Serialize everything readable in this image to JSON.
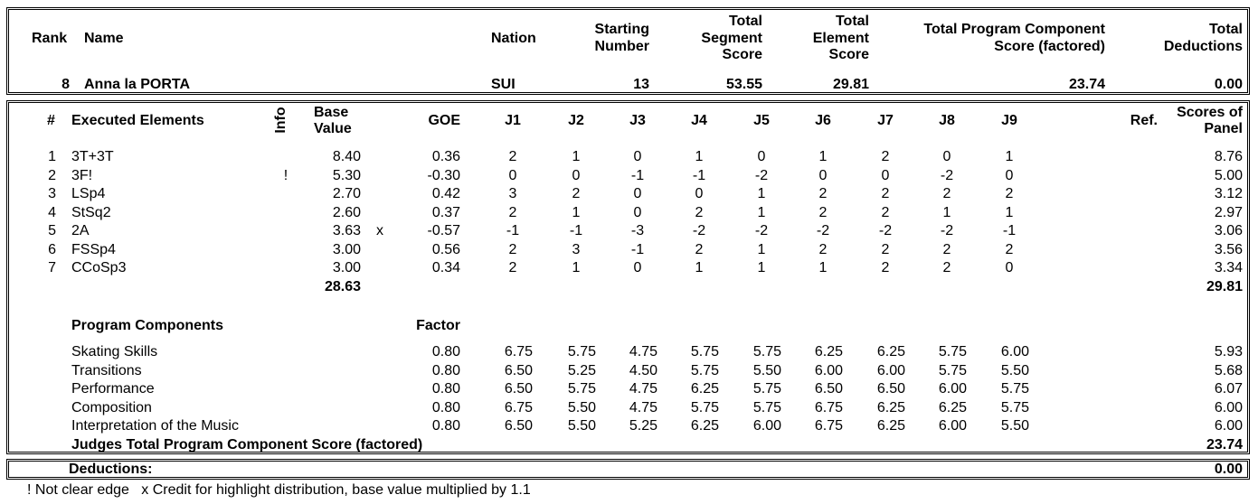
{
  "header": {
    "rank_label": "Rank",
    "name_label": "Name",
    "nation_label": "Nation",
    "starting_number_label": [
      "Starting",
      "Number"
    ],
    "total_segment_label": [
      "Total",
      "Segment",
      "Score"
    ],
    "total_element_label": [
      "Total",
      "Element",
      "Score"
    ],
    "tpcs_label": [
      "Total Program Component",
      "Score (factored)"
    ],
    "deductions_label": [
      "Total",
      "Deductions"
    ]
  },
  "skater": {
    "rank": "8",
    "name": "Anna la PORTA",
    "nation": "SUI",
    "starting_number": "13",
    "total_segment_score": "53.55",
    "total_element_score": "29.81",
    "tpcs": "23.74",
    "total_deductions": "0.00"
  },
  "elements_header": {
    "num": "#",
    "executed": "Executed Elements",
    "info": "Info",
    "base_value": [
      "Base",
      "Value"
    ],
    "goe": "GOE",
    "judges": [
      "J1",
      "J2",
      "J3",
      "J4",
      "J5",
      "J6",
      "J7",
      "J8",
      "J9"
    ],
    "ref": "Ref.",
    "scores_of_panel": [
      "Scores of",
      "Panel"
    ]
  },
  "elements": [
    {
      "num": "1",
      "name": "3T+3T",
      "info": "",
      "base": "8.40",
      "x": "",
      "goe": "0.36",
      "judges": [
        "2",
        "1",
        "0",
        "1",
        "0",
        "1",
        "2",
        "0",
        "1"
      ],
      "score": "8.76"
    },
    {
      "num": "2",
      "name": "3F!",
      "info": "!",
      "base": "5.30",
      "x": "",
      "goe": "-0.30",
      "judges": [
        "0",
        "0",
        "-1",
        "-1",
        "-2",
        "0",
        "0",
        "-2",
        "0"
      ],
      "score": "5.00"
    },
    {
      "num": "3",
      "name": "LSp4",
      "info": "",
      "base": "2.70",
      "x": "",
      "goe": "0.42",
      "judges": [
        "3",
        "2",
        "0",
        "0",
        "1",
        "2",
        "2",
        "2",
        "2"
      ],
      "score": "3.12"
    },
    {
      "num": "4",
      "name": "StSq2",
      "info": "",
      "base": "2.60",
      "x": "",
      "goe": "0.37",
      "judges": [
        "2",
        "1",
        "0",
        "2",
        "1",
        "2",
        "2",
        "1",
        "1"
      ],
      "score": "2.97"
    },
    {
      "num": "5",
      "name": "2A",
      "info": "",
      "base": "3.63",
      "x": "x",
      "goe": "-0.57",
      "judges": [
        "-1",
        "-1",
        "-3",
        "-2",
        "-2",
        "-2",
        "-2",
        "-2",
        "-1"
      ],
      "score": "3.06"
    },
    {
      "num": "6",
      "name": "FSSp4",
      "info": "",
      "base": "3.00",
      "x": "",
      "goe": "0.56",
      "judges": [
        "2",
        "3",
        "-1",
        "2",
        "1",
        "2",
        "2",
        "2",
        "2"
      ],
      "score": "3.56"
    },
    {
      "num": "7",
      "name": "CCoSp3",
      "info": "",
      "base": "3.00",
      "x": "",
      "goe": "0.34",
      "judges": [
        "2",
        "1",
        "0",
        "1",
        "1",
        "1",
        "2",
        "2",
        "0"
      ],
      "score": "3.34"
    }
  ],
  "elements_totals": {
    "base": "28.63",
    "score": "29.81"
  },
  "components_header": {
    "title": "Program Components",
    "factor": "Factor"
  },
  "components": [
    {
      "name": "Skating Skills",
      "factor": "0.80",
      "judges": [
        "6.75",
        "5.75",
        "4.75",
        "5.75",
        "5.75",
        "6.25",
        "6.25",
        "5.75",
        "6.00"
      ],
      "score": "5.93"
    },
    {
      "name": "Transitions",
      "factor": "0.80",
      "judges": [
        "6.50",
        "5.25",
        "4.50",
        "5.75",
        "5.50",
        "6.00",
        "6.00",
        "5.75",
        "5.50"
      ],
      "score": "5.68"
    },
    {
      "name": "Performance",
      "factor": "0.80",
      "judges": [
        "6.50",
        "5.75",
        "4.75",
        "6.25",
        "5.75",
        "6.50",
        "6.50",
        "6.00",
        "5.75"
      ],
      "score": "6.07"
    },
    {
      "name": "Composition",
      "factor": "0.80",
      "judges": [
        "6.75",
        "5.50",
        "4.75",
        "5.75",
        "5.75",
        "6.75",
        "6.25",
        "6.25",
        "5.75"
      ],
      "score": "6.00"
    },
    {
      "name": "Interpretation of the Music",
      "factor": "0.80",
      "judges": [
        "6.50",
        "5.50",
        "5.25",
        "6.25",
        "6.00",
        "6.75",
        "6.25",
        "6.00",
        "5.50"
      ],
      "score": "6.00"
    }
  ],
  "components_total": {
    "label": "Judges Total Program Component Score (factored)",
    "score": "23.74"
  },
  "deductions": {
    "label": "Deductions:",
    "value": "0.00"
  },
  "footnote": "! Not clear edge   x Credit for highlight distribution, base value multiplied by 1.1"
}
